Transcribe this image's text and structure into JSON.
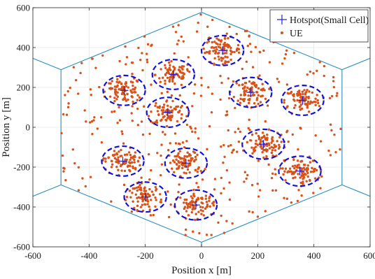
{
  "chart_data": {
    "type": "scatter",
    "xlabel": "Position x [m]",
    "ylabel": "Position y [m]",
    "xlim": [
      -600,
      600
    ],
    "ylim": [
      -600,
      600
    ],
    "xticks": [
      -600,
      -400,
      -200,
      0,
      200,
      400,
      600
    ],
    "yticks": [
      -600,
      -400,
      -200,
      0,
      200,
      400,
      600
    ],
    "grid": true,
    "legend_position": "top-right",
    "legend": [
      {
        "label": "Hotspot(Small Cell)",
        "marker": "plus",
        "color": "#1f1fd6"
      },
      {
        "label": "UE",
        "marker": "dot",
        "color": "#d95319"
      }
    ],
    "colors": {
      "hotspot": "#1f1fd6",
      "ue": "#d95319",
      "hexagon": "#2a8fc0",
      "grid": "#e6e6e6",
      "cluster_ellipse": "#1212d4"
    },
    "cell_boundary": {
      "shape": "hexagon",
      "vertices": [
        [
          0,
          577
        ],
        [
          500,
          289
        ],
        [
          500,
          -289
        ],
        [
          0,
          -577
        ],
        [
          -500,
          -289
        ],
        [
          -500,
          289
        ]
      ]
    },
    "neighbor_cell_edges": [
      [
        [
          0,
          577
        ],
        [
          0,
          600
        ]
      ],
      [
        [
          500,
          289
        ],
        [
          600,
          346
        ]
      ],
      [
        [
          500,
          -289
        ],
        [
          600,
          -346
        ]
      ],
      [
        [
          0,
          -577
        ],
        [
          0,
          -600
        ]
      ],
      [
        [
          -500,
          -289
        ],
        [
          -600,
          -346
        ]
      ],
      [
        [
          -500,
          289
        ],
        [
          -600,
          346
        ]
      ]
    ],
    "hotspots": [
      {
        "x": 75,
        "y": 385,
        "rx": 75,
        "ry": 75
      },
      {
        "x": -100,
        "y": 265,
        "rx": 75,
        "ry": 75
      },
      {
        "x": -275,
        "y": 185,
        "rx": 75,
        "ry": 75
      },
      {
        "x": 175,
        "y": 175,
        "rx": 75,
        "ry": 75
      },
      {
        "x": 360,
        "y": 135,
        "rx": 75,
        "ry": 75
      },
      {
        "x": -120,
        "y": 75,
        "rx": 75,
        "ry": 75
      },
      {
        "x": 220,
        "y": -85,
        "rx": 75,
        "ry": 75
      },
      {
        "x": -280,
        "y": -170,
        "rx": 75,
        "ry": 75
      },
      {
        "x": -55,
        "y": -180,
        "rx": 75,
        "ry": 75
      },
      {
        "x": 350,
        "y": -220,
        "rx": 75,
        "ry": 75
      },
      {
        "x": -200,
        "y": -350,
        "rx": 75,
        "ry": 75
      },
      {
        "x": -20,
        "y": -390,
        "rx": 75,
        "ry": 75
      }
    ],
    "ue_per_hotspot": 75,
    "ue_uniform_count": 380
  }
}
